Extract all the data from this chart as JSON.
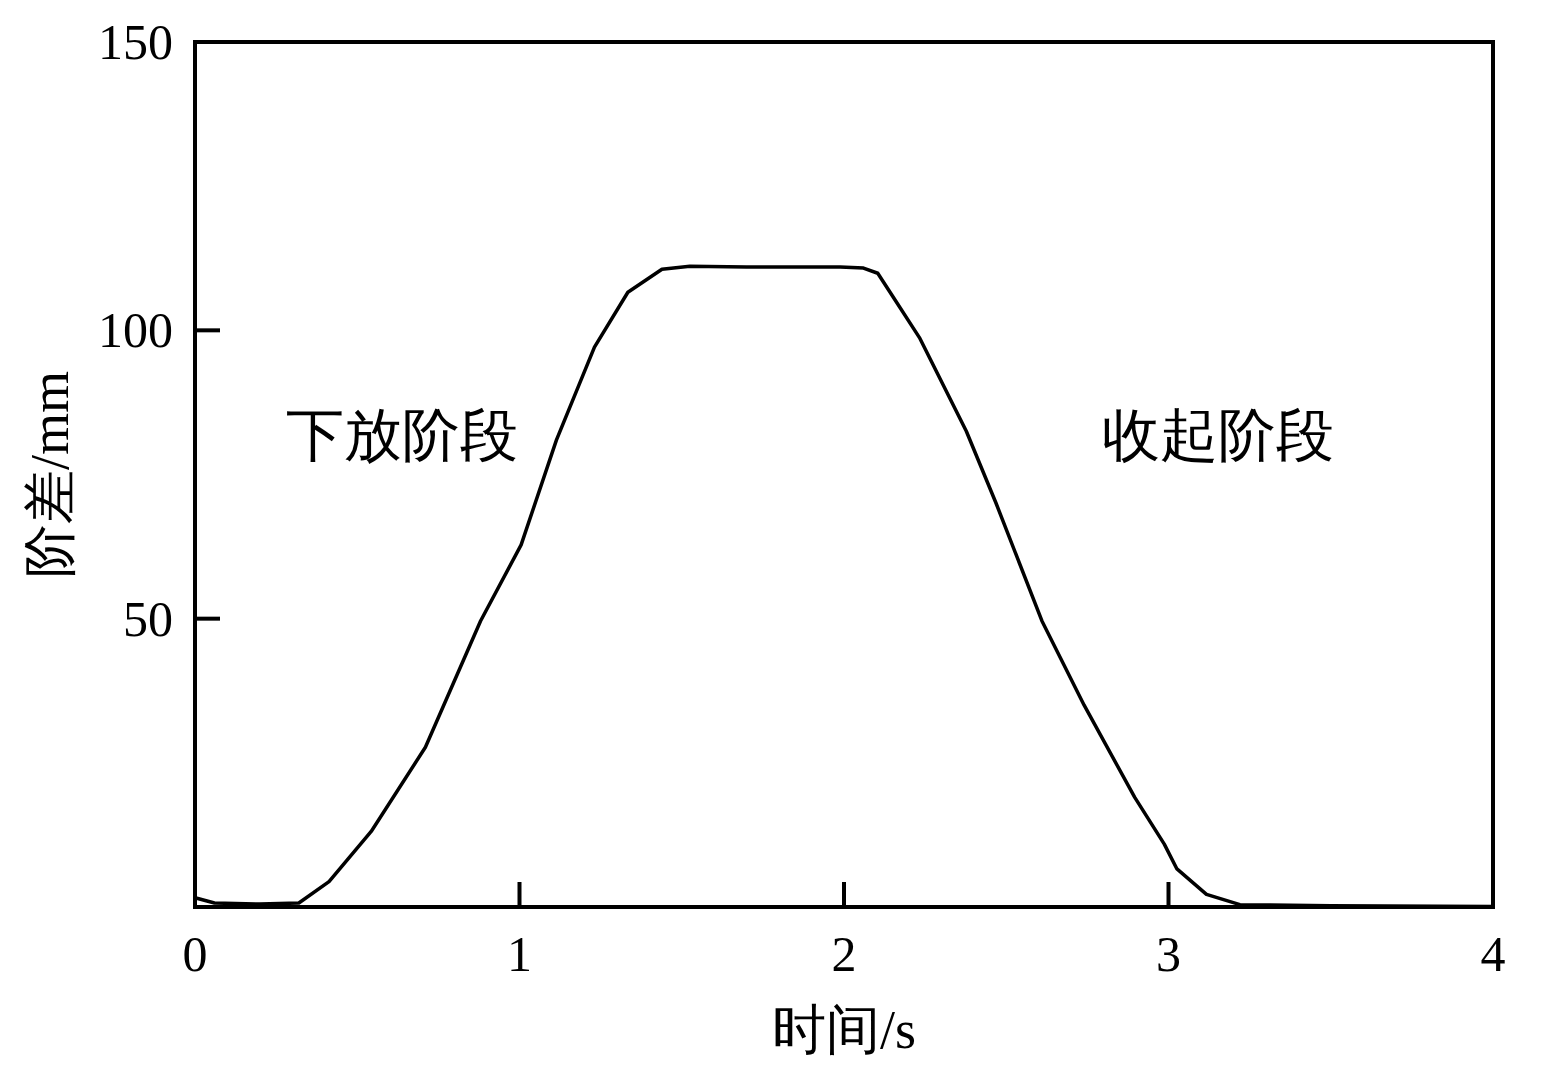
{
  "chart_data": {
    "type": "line",
    "xlabel": "时间/s",
    "ylabel": "阶差/mm",
    "annotations": [
      "下放阶段",
      "收起阶段"
    ],
    "xlim": [
      0,
      4
    ],
    "ylim": [
      0,
      150
    ],
    "xticks": [
      0,
      1,
      2,
      3,
      4
    ],
    "yticks": [
      50,
      100,
      150
    ],
    "grid": false,
    "marker": "none",
    "line_style": "solid",
    "series": [
      {
        "color": "#000000",
        "x": [
          0,
          0.06,
          0.2,
          0.32,
          0.413,
          0.543,
          0.71,
          0.88,
          1.005,
          1.114,
          1.231,
          1.334,
          1.439,
          1.525,
          1.7,
          1.85,
          1.988,
          2.06,
          2.104,
          2.15,
          2.234,
          2.377,
          2.468,
          2.61,
          2.74,
          2.896,
          2.987,
          3.026,
          3.117,
          3.22,
          3.5,
          4
        ],
        "values": [
          1.6,
          0.7,
          0.5,
          0.7,
          4.4,
          13.1,
          27.7,
          49.6,
          62.8,
          81.0,
          97.1,
          106.6,
          110.6,
          111.1,
          111.0,
          111.0,
          111.0,
          110.8,
          109.9,
          105.9,
          98.6,
          82.5,
          70.1,
          49.6,
          35.0,
          19.0,
          10.9,
          6.6,
          2.2,
          0.4,
          0.2,
          0.1
        ]
      }
    ]
  }
}
